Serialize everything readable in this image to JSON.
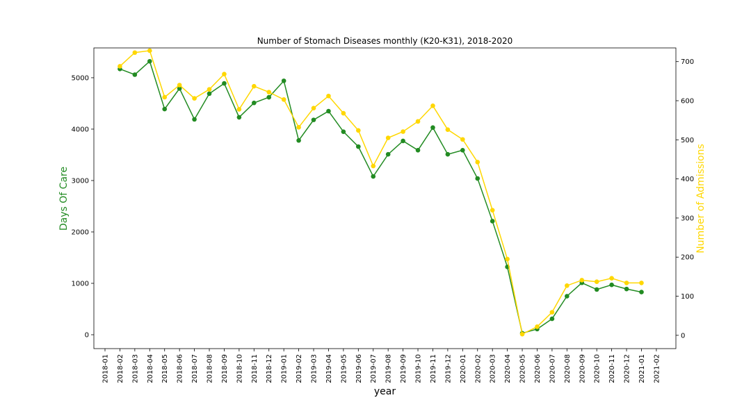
{
  "chart_data": {
    "type": "line",
    "title": "Number of Stomach Diseases monthly (K20-K31), 2018-2020",
    "xlabel": "year",
    "ylabel_left": "Days Of Care",
    "ylabel_right": "Number of Admissions",
    "x_ticks": [
      "2018-01",
      "2018-02",
      "2018-03",
      "2018-04",
      "2018-05",
      "2018-06",
      "2018-07",
      "2018-08",
      "2018-09",
      "2018-10",
      "2018-11",
      "2018-12",
      "2019-01",
      "2019-02",
      "2019-03",
      "2019-04",
      "2019-05",
      "2019-06",
      "2019-07",
      "2019-08",
      "2019-09",
      "2019-10",
      "2019-11",
      "2019-12",
      "2020-01",
      "2020-02",
      "2020-03",
      "2020-04",
      "2020-05",
      "2020-06",
      "2020-07",
      "2020-08",
      "2020-09",
      "2020-10",
      "2020-11",
      "2020-12",
      "2021-01",
      "2021-02"
    ],
    "x": [
      "2018-02",
      "2018-03",
      "2018-04",
      "2018-05",
      "2018-06",
      "2018-07",
      "2018-08",
      "2018-09",
      "2018-10",
      "2018-11",
      "2018-12",
      "2019-01",
      "2019-02",
      "2019-03",
      "2019-04",
      "2019-05",
      "2019-06",
      "2019-07",
      "2019-08",
      "2019-09",
      "2019-10",
      "2019-11",
      "2019-12",
      "2020-01",
      "2020-02",
      "2020-03",
      "2020-04",
      "2020-05",
      "2020-06",
      "2020-07",
      "2020-08",
      "2020-09",
      "2020-10",
      "2020-11",
      "2020-12",
      "2021-01"
    ],
    "left_yticks": [
      0,
      1000,
      2000,
      3000,
      4000,
      5000
    ],
    "right_yticks": [
      0,
      100,
      200,
      300,
      400,
      500,
      600,
      700
    ],
    "left_ylim": [
      -270,
      5580
    ],
    "right_ylim": [
      -34,
      735
    ],
    "series": [
      {
        "axis": "left",
        "color": "#228b22",
        "values": [
          5170,
          5060,
          5320,
          4390,
          4790,
          4190,
          4690,
          4890,
          4230,
          4510,
          4620,
          4940,
          3780,
          4180,
          4350,
          3950,
          3660,
          3080,
          3510,
          3770,
          3590,
          4030,
          3510,
          3590,
          3040,
          2210,
          1320,
          30,
          110,
          310,
          750,
          1010,
          880,
          970,
          890,
          830
        ]
      },
      {
        "axis": "right",
        "color": "#ffd700",
        "values": [
          688,
          723,
          728,
          609,
          640,
          606,
          629,
          668,
          578,
          637,
          622,
          603,
          532,
          581,
          612,
          568,
          524,
          433,
          505,
          521,
          547,
          587,
          526,
          501,
          443,
          320,
          195,
          3,
          22,
          59,
          127,
          141,
          137,
          146,
          134,
          134
        ]
      }
    ]
  }
}
